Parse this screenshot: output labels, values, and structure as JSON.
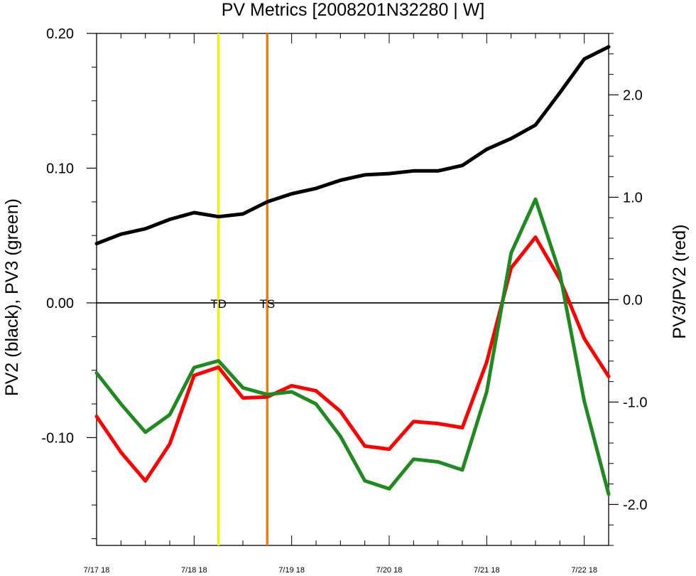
{
  "chart_data": {
    "type": "line",
    "title": "PV Metrics [2008201N32280 | W]",
    "ylabel_left": "PV2 (black), PV3 (green)",
    "ylabel_right": "PV3/PV2 (red)",
    "x_ticks": [
      "7/17 18",
      "7/18 18",
      "7/19 18",
      "7/20 18",
      "7/21 18",
      "7/22 18"
    ],
    "x_range_days": [
      0,
      5.25
    ],
    "left_ylim": [
      -0.18,
      0.2
    ],
    "left_ticks": [
      "0.20",
      "0.10",
      "0.00",
      "-0.10"
    ],
    "left_tick_values": [
      0.2,
      0.1,
      0.0,
      -0.1
    ],
    "right_ylim": [
      -2.4,
      2.6
    ],
    "right_ticks": [
      "2.0",
      "1.0",
      "0.0",
      "-1.0",
      "-2.0"
    ],
    "right_tick_values": [
      2.0,
      1.0,
      0.0,
      -1.0,
      -2.0
    ],
    "zero_line": 0.0,
    "events": [
      {
        "label": "TD",
        "x_day": 1.25,
        "color": "#f2f200"
      },
      {
        "label": "TS",
        "x_day": 1.75,
        "color": "#f07d14"
      }
    ],
    "x_days": [
      0,
      0.25,
      0.5,
      0.75,
      1.0,
      1.25,
      1.5,
      1.75,
      2.0,
      2.25,
      2.5,
      2.75,
      3.0,
      3.25,
      3.5,
      3.75,
      4.0,
      4.25,
      4.5,
      4.75,
      5.0,
      5.25
    ],
    "series": [
      {
        "name": "PV2",
        "axis": "left",
        "color": "#000000",
        "values": [
          0.044,
          0.051,
          0.055,
          0.062,
          0.067,
          0.064,
          0.066,
          0.075,
          0.081,
          0.085,
          0.091,
          0.095,
          0.096,
          0.098,
          0.098,
          0.102,
          0.114,
          0.122,
          0.132,
          0.156,
          0.181,
          0.19
        ]
      },
      {
        "name": "PV3",
        "axis": "left",
        "color": "#1f8a1f",
        "values": [
          -0.052,
          -0.075,
          -0.096,
          -0.083,
          -0.048,
          -0.043,
          -0.063,
          -0.068,
          -0.066,
          -0.075,
          -0.099,
          -0.132,
          -0.138,
          -0.116,
          -0.118,
          -0.124,
          -0.066,
          0.037,
          0.077,
          0.022,
          -0.073,
          -0.142
        ]
      },
      {
        "name": "PV3/PV2",
        "axis": "right",
        "color": "#ff0000",
        "values": [
          -1.14,
          -1.49,
          -1.77,
          -1.41,
          -0.74,
          -0.66,
          -0.96,
          -0.95,
          -0.84,
          -0.89,
          -1.09,
          -1.43,
          -1.46,
          -1.19,
          -1.21,
          -1.25,
          -0.61,
          0.31,
          0.61,
          0.2,
          -0.38,
          -0.75
        ]
      }
    ]
  }
}
